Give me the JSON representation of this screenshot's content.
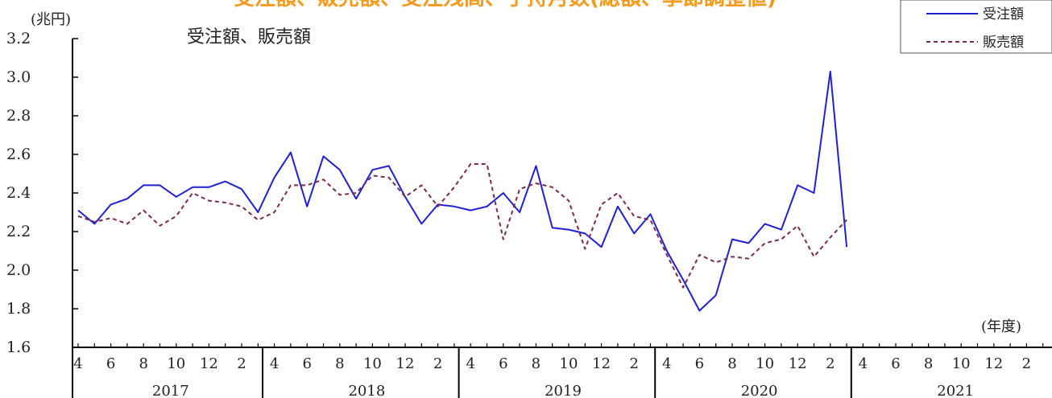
{
  "page_title": "受注額、販売額、受注残高、手持月数(総額、季節調整値)",
  "chart_data": {
    "type": "line",
    "title": "受注額、販売額",
    "unit_label": "(兆円)",
    "x_unit_label": "(年度)",
    "ylim": [
      1.6,
      3.2
    ],
    "yticks": [
      "1.6",
      "1.8",
      "2.0",
      "2.2",
      "2.4",
      "2.6",
      "2.8",
      "3.0",
      "3.2"
    ],
    "month_tick_labels": [
      "4",
      "6",
      "8",
      "10",
      "12",
      "2"
    ],
    "fiscal_years": [
      "2017",
      "2018",
      "2019",
      "2020",
      "2021"
    ],
    "months_total": 60,
    "grid": false,
    "legend_position": "top-right",
    "colors": {
      "orders": "#1f1fd6",
      "sales": "#7a2a4e",
      "title": "#f59a1b",
      "axis": "#000000"
    },
    "series": [
      {
        "name": "受注額",
        "style": "solid",
        "values": [
          2.31,
          2.24,
          2.34,
          2.37,
          2.44,
          2.44,
          2.38,
          2.43,
          2.43,
          2.46,
          2.42,
          2.3,
          2.48,
          2.61,
          2.33,
          2.59,
          2.52,
          2.37,
          2.52,
          2.54,
          2.38,
          2.24,
          2.34,
          2.33,
          2.31,
          2.33,
          2.4,
          2.3,
          2.54,
          2.22,
          2.21,
          2.19,
          2.12,
          2.33,
          2.19,
          2.29,
          2.1,
          1.95,
          1.79,
          1.87,
          2.16,
          2.14,
          2.24,
          2.21,
          2.44,
          2.4,
          3.03,
          2.12
        ]
      },
      {
        "name": "販売額",
        "style": "dashed",
        "values": [
          2.28,
          2.25,
          2.27,
          2.24,
          2.31,
          2.23,
          2.28,
          2.4,
          2.36,
          2.35,
          2.33,
          2.26,
          2.3,
          2.44,
          2.44,
          2.47,
          2.39,
          2.4,
          2.49,
          2.48,
          2.38,
          2.44,
          2.33,
          2.43,
          2.55,
          2.55,
          2.16,
          2.42,
          2.45,
          2.43,
          2.36,
          2.11,
          2.34,
          2.4,
          2.28,
          2.26,
          2.08,
          1.91,
          2.08,
          2.04,
          2.07,
          2.06,
          2.14,
          2.16,
          2.23,
          2.07,
          2.17,
          2.26
        ]
      }
    ]
  }
}
